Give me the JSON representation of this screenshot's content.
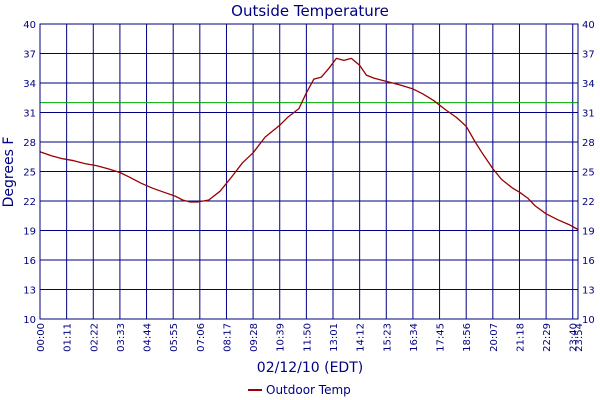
{
  "chart_data": {
    "type": "line",
    "title": "Outside Temperature",
    "xlabel": "02/12/10 (EDT)",
    "ylabel": "Degrees F",
    "ylim": [
      10,
      40
    ],
    "y_ticks": [
      10,
      13,
      16,
      19,
      22,
      25,
      28,
      31,
      34,
      37,
      40
    ],
    "x_range": [
      "00:00",
      "23:54"
    ],
    "x_ticks": [
      "00:00",
      "01:11",
      "02:22",
      "03:33",
      "04:44",
      "05:55",
      "07:06",
      "08:17",
      "09:28",
      "10:39",
      "11:50",
      "13:01",
      "14:12",
      "15:23",
      "16:34",
      "17:45",
      "18:56",
      "20:07",
      "21:18",
      "22:29",
      "23:40",
      "23:54"
    ],
    "grid": true,
    "legend_position": "bottom-center",
    "colors": {
      "series": "#990000",
      "reference_line": "#00aa00",
      "grid": "#000080",
      "text": "#000080"
    },
    "reference_line": {
      "y": 32
    },
    "series": [
      {
        "name": "Outdoor Temp",
        "points": [
          [
            "00:00",
            27.0
          ],
          [
            "00:30",
            26.6
          ],
          [
            "01:00",
            26.3
          ],
          [
            "01:30",
            26.1
          ],
          [
            "02:00",
            25.8
          ],
          [
            "02:30",
            25.6
          ],
          [
            "03:00",
            25.3
          ],
          [
            "03:33",
            24.9
          ],
          [
            "04:00",
            24.4
          ],
          [
            "04:30",
            23.8
          ],
          [
            "05:00",
            23.3
          ],
          [
            "05:30",
            22.9
          ],
          [
            "06:00",
            22.5
          ],
          [
            "06:20",
            22.1
          ],
          [
            "06:40",
            21.9
          ],
          [
            "07:00",
            21.9
          ],
          [
            "07:30",
            22.1
          ],
          [
            "08:00",
            23.0
          ],
          [
            "08:30",
            24.4
          ],
          [
            "09:00",
            25.9
          ],
          [
            "09:28",
            26.9
          ],
          [
            "10:00",
            28.5
          ],
          [
            "10:39",
            29.7
          ],
          [
            "11:00",
            30.5
          ],
          [
            "11:30",
            31.4
          ],
          [
            "11:50",
            33.0
          ],
          [
            "12:10",
            34.4
          ],
          [
            "12:30",
            34.6
          ],
          [
            "12:50",
            35.5
          ],
          [
            "13:10",
            36.5
          ],
          [
            "13:30",
            36.3
          ],
          [
            "13:50",
            36.5
          ],
          [
            "14:12",
            35.8
          ],
          [
            "14:30",
            34.8
          ],
          [
            "14:50",
            34.5
          ],
          [
            "15:10",
            34.3
          ],
          [
            "15:40",
            34.0
          ],
          [
            "16:00",
            33.8
          ],
          [
            "16:34",
            33.4
          ],
          [
            "17:00",
            32.9
          ],
          [
            "17:30",
            32.2
          ],
          [
            "18:00",
            31.3
          ],
          [
            "18:30",
            30.5
          ],
          [
            "18:56",
            29.6
          ],
          [
            "19:20",
            28.0
          ],
          [
            "19:40",
            26.8
          ],
          [
            "20:07",
            25.3
          ],
          [
            "20:30",
            24.2
          ],
          [
            "21:00",
            23.3
          ],
          [
            "21:18",
            22.9
          ],
          [
            "21:40",
            22.3
          ],
          [
            "22:00",
            21.5
          ],
          [
            "22:29",
            20.7
          ],
          [
            "23:00",
            20.1
          ],
          [
            "23:30",
            19.6
          ],
          [
            "23:54",
            19.1
          ]
        ]
      }
    ]
  }
}
